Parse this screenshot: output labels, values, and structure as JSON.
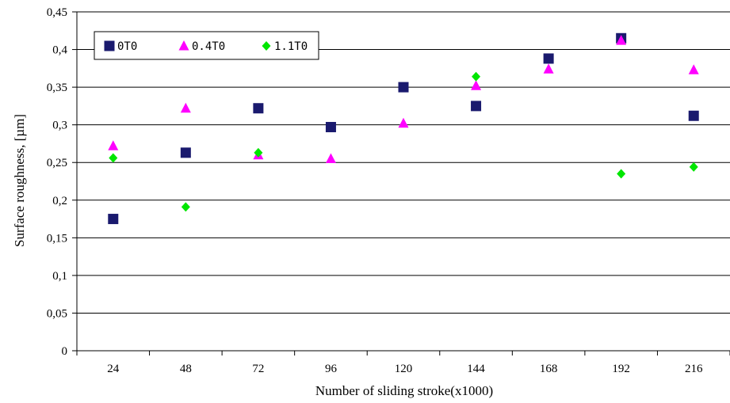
{
  "chart_data": {
    "type": "scatter",
    "title": "",
    "xlabel": "Number of sliding stroke(x1000)",
    "ylabel": "Surface roughness, [µm]",
    "categories": [
      "24",
      "48",
      "72",
      "96",
      "120",
      "144",
      "168",
      "192",
      "216"
    ],
    "y_ticks": [
      "0",
      "0,05",
      "0,1",
      "0,15",
      "0,2",
      "0,25",
      "0,3",
      "0,35",
      "0,4",
      "0,45"
    ],
    "ylim": [
      0,
      0.45
    ],
    "grid": "horizontal",
    "legend_position": "top-left",
    "series": [
      {
        "name": "0T0",
        "marker": "square",
        "color": "#1a1a6e",
        "values": [
          0.175,
          0.263,
          0.322,
          0.297,
          0.35,
          0.325,
          0.388,
          0.415,
          0.312
        ]
      },
      {
        "name": "0.4T0",
        "marker": "triangle",
        "color": "#ff00ff",
        "values": [
          0.272,
          0.322,
          0.26,
          0.255,
          0.302,
          0.352,
          0.374,
          0.412,
          0.373
        ]
      },
      {
        "name": "1.1T0",
        "marker": "diamond",
        "color": "#00e600",
        "values": [
          0.256,
          0.191,
          0.263,
          null,
          null,
          0.364,
          null,
          0.235,
          0.244
        ]
      }
    ]
  }
}
